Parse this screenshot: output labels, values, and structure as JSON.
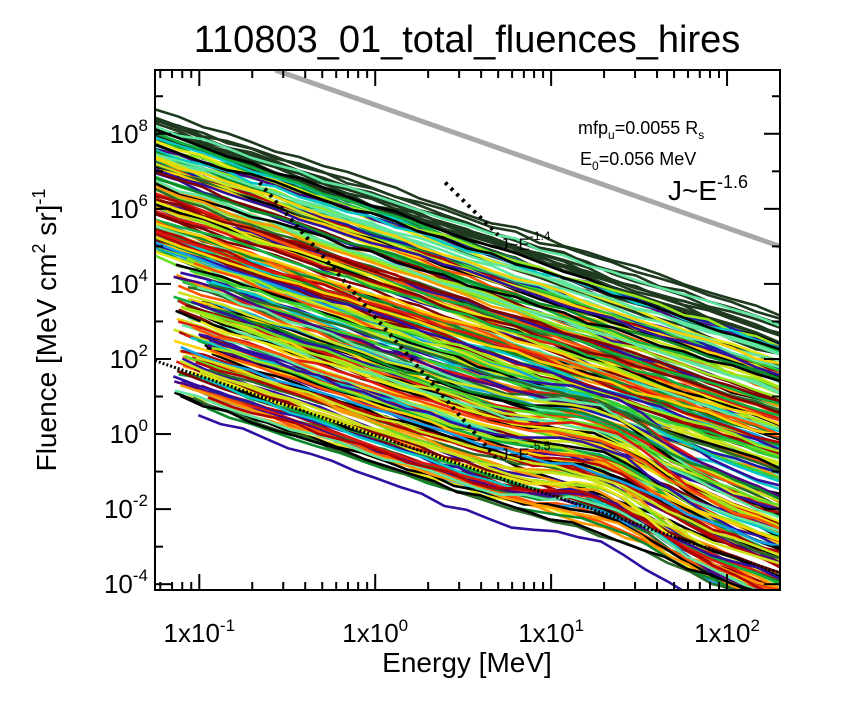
{
  "chart_data": {
    "type": "line",
    "title": "110803_01_total_fluences_hires",
    "xlabel": "Energy [MeV]",
    "ylabel_parts": {
      "main": "Fluence [MeV cm",
      "exp1": "2",
      "mid": " sr]",
      "exp2": "-1"
    },
    "x_scale": "log",
    "y_scale": "log",
    "xlim": [
      0.056,
      200
    ],
    "ylim": [
      7e-05,
      5000000000
    ],
    "x_ticks": [
      {
        "value": 0.1,
        "mant": "1x10",
        "exp": "-1"
      },
      {
        "value": 1,
        "mant": "1x10",
        "exp": "0"
      },
      {
        "value": 10,
        "mant": "1x10",
        "exp": "1"
      },
      {
        "value": 100,
        "mant": "1x10",
        "exp": "2"
      }
    ],
    "y_ticks": [
      {
        "value": 0.0001,
        "mant": "10",
        "exp": "-4"
      },
      {
        "value": 0.01,
        "mant": "10",
        "exp": "-2"
      },
      {
        "value": 1,
        "mant": "10",
        "exp": "0"
      },
      {
        "value": 100,
        "mant": "10",
        "exp": "2"
      },
      {
        "value": 10000,
        "mant": "10",
        "exp": "4"
      },
      {
        "value": 1000000,
        "mant": "10",
        "exp": "6"
      },
      {
        "value": 100000000,
        "mant": "10",
        "exp": "8"
      }
    ],
    "annotations": {
      "mfp": {
        "main": "mfp",
        "sub": "u",
        "rest": "=0.0055 R",
        "sub2": "s"
      },
      "e0": {
        "main": "E",
        "sub": "0",
        "rest": "=0.056 MeV"
      },
      "j_main": {
        "main": "J~E",
        "exp": "-1.6"
      },
      "j_upper": {
        "main": "J~E",
        "exp": "-1.4"
      },
      "j_lower": {
        "main": "J~E",
        "exp": "-5.5"
      }
    },
    "reference_lines": [
      {
        "name": "grey power law",
        "color": "#a8a8a8",
        "points": [
          [
            0.27,
            5000000000
          ],
          [
            200,
            100000
          ]
        ]
      },
      {
        "name": "lower bound",
        "color": "#000000",
        "points": [
          [
            0.056,
            90
          ],
          [
            200,
            0.0002
          ]
        ]
      },
      {
        "name": "upper dotted",
        "color": "#000000",
        "points": [
          [
            2.5,
            5000000
          ],
          [
            5,
            200000
          ]
        ]
      },
      {
        "name": "steep dotted",
        "color": "#000000",
        "points": [
          [
            0.22,
            5000000
          ],
          [
            5,
            0.2
          ]
        ]
      }
    ],
    "series_palette": [
      "#1a1aa8",
      "#3010a0",
      "#4a0080",
      "#0a8a2a",
      "#10b040",
      "#33cc33",
      "#66dd22",
      "#99e61a",
      "#cce21a",
      "#e6e610",
      "#ffd000",
      "#ff9900",
      "#ff5500",
      "#dd1a10",
      "#b00000",
      "#800000",
      "#00c8c8",
      "#10a0e6",
      "#60e6a0",
      "#000000",
      "#2a6a2a"
    ]
  }
}
